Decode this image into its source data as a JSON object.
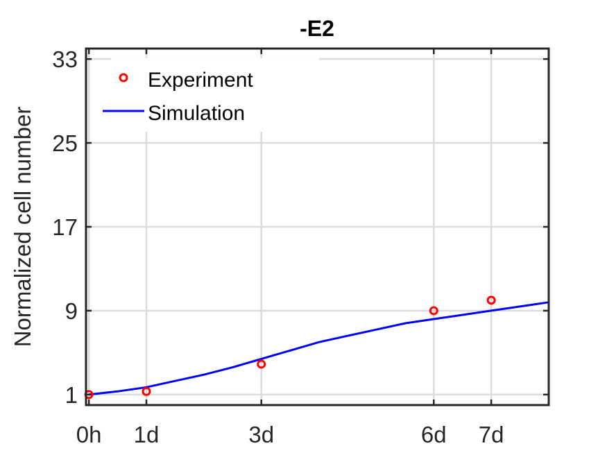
{
  "chart_data": {
    "type": "line",
    "title": "-E2",
    "xlabel": "",
    "ylabel": "Normalized cell number",
    "xlim": [
      -0.05,
      8
    ],
    "ylim": [
      0,
      34
    ],
    "x_ticks": [
      0,
      1,
      3,
      6,
      7
    ],
    "x_tick_labels": [
      "0h",
      "1d",
      "3d",
      "6d",
      "7d"
    ],
    "y_ticks": [
      1,
      9,
      17,
      25,
      33
    ],
    "y_tick_labels": [
      "1",
      "9",
      "17",
      "25",
      "33"
    ],
    "grid": true,
    "legend_position": "top-left",
    "series": [
      {
        "name": "Experiment",
        "kind": "scatter",
        "color": "#ff0000",
        "marker": "circle",
        "x": [
          0,
          1,
          3,
          6,
          7
        ],
        "y": [
          1.0,
          1.3,
          3.9,
          9.0,
          10.0
        ]
      },
      {
        "name": "Simulation",
        "kind": "line",
        "color": "#0000ff",
        "x": [
          0,
          0.5,
          1,
          1.5,
          2,
          2.5,
          3,
          3.5,
          4,
          4.5,
          5,
          5.5,
          6,
          6.5,
          7,
          7.5,
          8
        ],
        "y": [
          1.0,
          1.3,
          1.7,
          2.3,
          2.9,
          3.6,
          4.4,
          5.2,
          6.0,
          6.6,
          7.2,
          7.8,
          8.2,
          8.6,
          9.0,
          9.4,
          9.8
        ]
      }
    ]
  }
}
